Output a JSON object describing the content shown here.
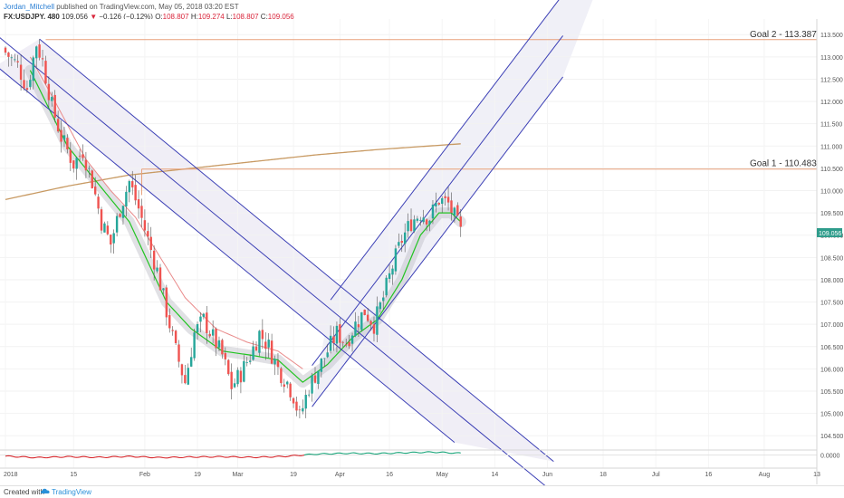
{
  "header": {
    "author": "Jordan_Mitchell",
    "published": "published on TradingView.com, May 05, 2018 03:20 EST",
    "symbol": "FX:USDJPY, 480",
    "last": "109.056",
    "change_arrow": "▼",
    "change": "−0.126 (−0.12%)",
    "o_label": "O:",
    "o_value": "108.807",
    "h_label": "H:",
    "h_value": "109.274",
    "l_label": "L:",
    "l_value": "108.807",
    "c_label": "C:",
    "c_value": "109.056"
  },
  "footer": {
    "created_with": "Created with",
    "brand": "TradingView",
    "logo_icon": "tradingview-cloud-icon"
  },
  "colors": {
    "up": "#26a69a",
    "down": "#ef5350",
    "ema_green": "#22c422",
    "ema_red": "#e98a8a",
    "sma_brown": "#c89a63",
    "goal_line": "#e8a07a",
    "channel": "#3b3fb5",
    "osc_up": "#1aa57a",
    "osc_down": "#d6262b",
    "price_badge": "#2e9c8b"
  },
  "chart_data": {
    "type": "candlestick",
    "symbol": "FX:USDJPY",
    "interval": "480",
    "x_axis": {
      "tick_labels": [
        "2018",
        "15",
        "Feb",
        "19",
        "Mar",
        "19",
        "Apr",
        "16",
        "May",
        "14",
        "Jun",
        "18",
        "Jul",
        "16",
        "Aug",
        "13"
      ]
    },
    "y_axis": {
      "ylim": [
        104.2,
        113.85
      ],
      "tick_labels": [
        "113.500",
        "113.000",
        "112.500",
        "112.000",
        "111.500",
        "111.000",
        "110.500",
        "110.000",
        "109.500",
        "109.000",
        "108.500",
        "108.000",
        "107.500",
        "107.000",
        "106.500",
        "106.000",
        "105.500",
        "105.000",
        "104.500"
      ]
    },
    "last_price": "109.056",
    "annotations": [
      {
        "label": "Goal 2 - 113.387",
        "price": 113.387
      },
      {
        "label": "Goal 1 - 110.483",
        "price": 110.483
      }
    ],
    "close_path": [
      [
        0,
        113.1
      ],
      [
        4,
        112.8
      ],
      [
        7,
        112.3
      ],
      [
        10,
        113.3
      ],
      [
        12,
        112.9
      ],
      [
        15,
        111.9
      ],
      [
        18,
        111.2
      ],
      [
        22,
        110.6
      ],
      [
        25,
        110.9
      ],
      [
        28,
        110.2
      ],
      [
        31,
        109.3
      ],
      [
        34,
        108.8
      ],
      [
        37,
        109.6
      ],
      [
        40,
        110.2
      ],
      [
        43,
        109.6
      ],
      [
        46,
        108.9
      ],
      [
        49,
        108.2
      ],
      [
        52,
        107.3
      ],
      [
        55,
        106.4
      ],
      [
        58,
        105.7
      ],
      [
        61,
        106.8
      ],
      [
        64,
        107.1
      ],
      [
        67,
        106.7
      ],
      [
        70,
        106.3
      ],
      [
        73,
        105.6
      ],
      [
        76,
        105.9
      ],
      [
        79,
        106.3
      ],
      [
        82,
        106.8
      ],
      [
        85,
        106.5
      ],
      [
        88,
        106.0
      ],
      [
        91,
        105.7
      ],
      [
        93,
        105.4
      ],
      [
        95,
        104.9
      ],
      [
        98,
        105.6
      ],
      [
        101,
        106.0
      ],
      [
        104,
        106.4
      ],
      [
        107,
        106.8
      ],
      [
        110,
        106.6
      ],
      [
        113,
        107.0
      ],
      [
        116,
        107.3
      ],
      [
        119,
        107.0
      ],
      [
        122,
        107.6
      ],
      [
        125,
        108.3
      ],
      [
        128,
        108.9
      ],
      [
        131,
        109.3
      ],
      [
        134,
        109.5
      ],
      [
        137,
        109.4
      ],
      [
        140,
        109.8
      ],
      [
        143,
        109.7
      ],
      [
        145,
        109.4
      ],
      [
        147,
        109.06
      ]
    ],
    "series": [
      {
        "name": "FX:USDJPY",
        "type": "candles"
      },
      {
        "type": "ema",
        "points": [
          [
            8,
            112.7
          ],
          [
            20,
            111.0
          ],
          [
            40,
            109.3
          ],
          [
            52,
            107.5
          ],
          [
            60,
            106.9
          ],
          [
            70,
            106.4
          ],
          [
            80,
            106.3
          ],
          [
            88,
            106.2
          ],
          [
            96,
            105.7
          ],
          [
            104,
            106.1
          ],
          [
            112,
            106.7
          ],
          [
            120,
            107.1
          ],
          [
            128,
            108.0
          ],
          [
            134,
            109.0
          ],
          [
            140,
            109.5
          ],
          [
            144,
            109.5
          ],
          [
            147,
            109.3
          ]
        ]
      },
      {
        "type": "ema",
        "points": [
          [
            8,
            113.0
          ],
          [
            16,
            112.0
          ],
          [
            26,
            110.7
          ],
          [
            34,
            110.0
          ],
          [
            42,
            109.4
          ],
          [
            50,
            108.5
          ],
          [
            58,
            107.6
          ],
          [
            68,
            106.9
          ],
          [
            78,
            106.6
          ],
          [
            88,
            106.4
          ],
          [
            96,
            106.0
          ]
        ]
      },
      {
        "type": "sma",
        "points": [
          [
            0,
            109.8
          ],
          [
            20,
            110.1
          ],
          [
            40,
            110.35
          ],
          [
            60,
            110.5
          ],
          [
            80,
            110.65
          ],
          [
            100,
            110.8
          ],
          [
            120,
            110.92
          ],
          [
            147,
            111.05
          ]
        ]
      }
    ],
    "channels": [
      {
        "name": "down-channel",
        "anchors": [
          [
            -3,
            112.8
          ],
          [
            11,
            113.4
          ],
          [
            145,
            104.35
          ],
          [
            177,
            104.35
          ]
        ]
      },
      {
        "name": "up-channel",
        "anchors": [
          [
            99,
            107.0
          ],
          [
            105,
            105.7
          ],
          [
            180,
            114.4
          ],
          [
            201,
            114.4
          ]
        ]
      }
    ],
    "oscillator": {
      "zero_label": "0.0000",
      "points": [
        [
          0,
          -0.4
        ],
        [
          10,
          -0.9
        ],
        [
          20,
          -0.6
        ],
        [
          30,
          -0.8
        ],
        [
          40,
          -0.5
        ],
        [
          50,
          -0.9
        ],
        [
          60,
          -0.7
        ],
        [
          70,
          -0.6
        ],
        [
          80,
          -0.8
        ],
        [
          90,
          -0.5
        ],
        [
          100,
          0.3
        ],
        [
          110,
          0.6
        ],
        [
          120,
          0.5
        ],
        [
          130,
          0.8
        ],
        [
          138,
          1.0
        ],
        [
          147,
          0.6
        ]
      ]
    }
  }
}
